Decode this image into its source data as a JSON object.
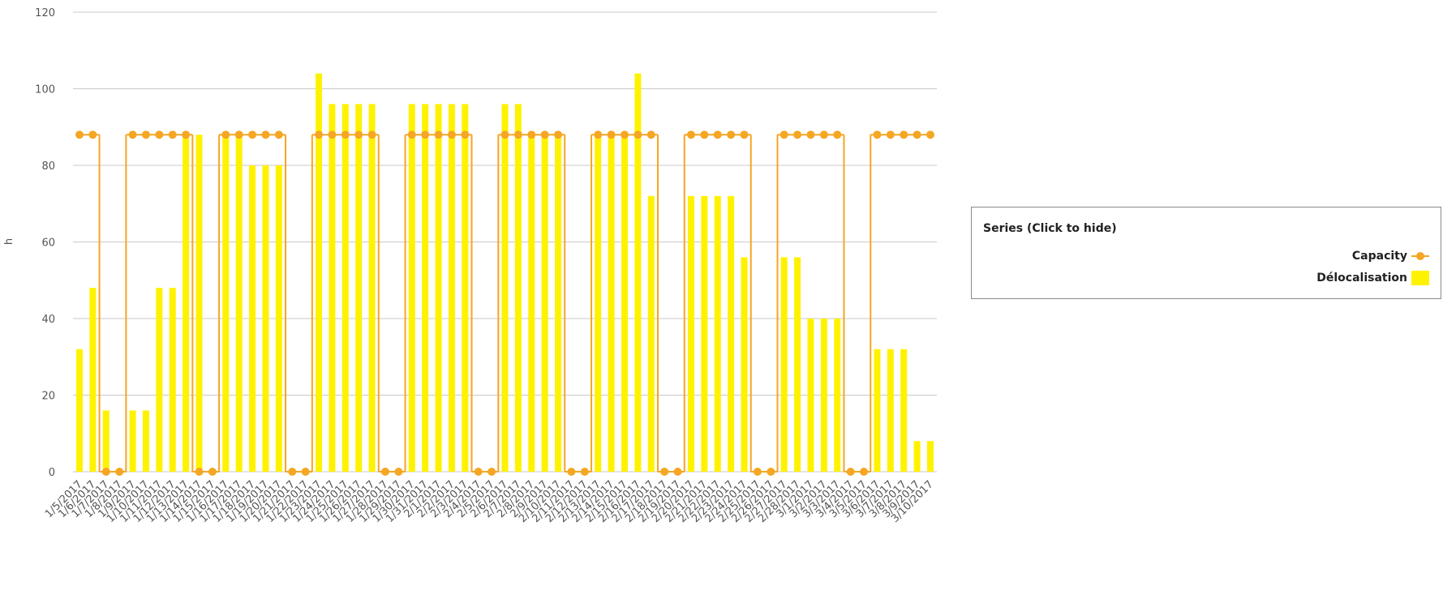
{
  "chart_data": {
    "type": "bar-line",
    "y_axis_label": "h",
    "legend_title": "Series (Click to hide)",
    "categories": [
      "1/5/2017",
      "1/6/2017",
      "1/7/2017",
      "1/8/2017",
      "1/9/2017",
      "1/10/2017",
      "1/11/2017",
      "1/12/2017",
      "1/13/2017",
      "1/14/2017",
      "1/15/2017",
      "1/16/2017",
      "1/17/2017",
      "1/18/2017",
      "1/19/2017",
      "1/20/2017",
      "1/21/2017",
      "1/22/2017",
      "1/23/2017",
      "1/24/2017",
      "1/25/2017",
      "1/26/2017",
      "1/27/2017",
      "1/28/2017",
      "1/29/2017",
      "1/30/2017",
      "1/31/2017",
      "2/1/2017",
      "2/2/2017",
      "2/3/2017",
      "2/4/2017",
      "2/5/2017",
      "2/6/2017",
      "2/7/2017",
      "2/8/2017",
      "2/9/2017",
      "2/10/2017",
      "2/11/2017",
      "2/12/2017",
      "2/13/2017",
      "2/14/2017",
      "2/15/2017",
      "2/16/2017",
      "2/17/2017",
      "2/18/2017",
      "2/19/2017",
      "2/20/2017",
      "2/21/2017",
      "2/22/2017",
      "2/23/2017",
      "2/24/2017",
      "2/25/2017",
      "2/26/2017",
      "2/27/2017",
      "2/28/2017",
      "3/1/2017",
      "3/2/2017",
      "3/3/2017",
      "3/4/2017",
      "3/5/2017",
      "3/6/2017",
      "3/7/2017",
      "3/8/2017",
      "3/9/2017",
      "3/10/2017"
    ],
    "series": [
      {
        "name": "Capacity",
        "kind": "step-line",
        "color": "#f5a623",
        "values": [
          88,
          88,
          0,
          0,
          88,
          88,
          88,
          88,
          88,
          0,
          0,
          88,
          88,
          88,
          88,
          88,
          0,
          0,
          88,
          88,
          88,
          88,
          88,
          0,
          0,
          88,
          88,
          88,
          88,
          88,
          0,
          0,
          88,
          88,
          88,
          88,
          88,
          0,
          0,
          88,
          88,
          88,
          88,
          88,
          0,
          0,
          88,
          88,
          88,
          88,
          88,
          0,
          0,
          88,
          88,
          88,
          88,
          88,
          0,
          0,
          88,
          88,
          88,
          88,
          88
        ]
      },
      {
        "name": "Délocalisation",
        "kind": "bar",
        "color": "#fff200",
        "values": [
          32,
          48,
          16,
          0,
          16,
          16,
          48,
          48,
          88,
          88,
          0,
          88,
          88,
          80,
          80,
          80,
          0,
          0,
          104,
          96,
          96,
          96,
          96,
          0,
          0,
          96,
          96,
          96,
          96,
          96,
          0,
          0,
          96,
          96,
          88,
          88,
          88,
          0,
          0,
          88,
          88,
          88,
          104,
          72,
          0,
          0,
          72,
          72,
          72,
          72,
          56,
          0,
          0,
          56,
          56,
          40,
          40,
          40,
          0,
          0,
          32,
          32,
          32,
          8,
          8
        ]
      }
    ],
    "ylim": [
      0,
      120
    ],
    "yticks": [
      0,
      20,
      40,
      60,
      80,
      100,
      120
    ],
    "grid": true
  }
}
